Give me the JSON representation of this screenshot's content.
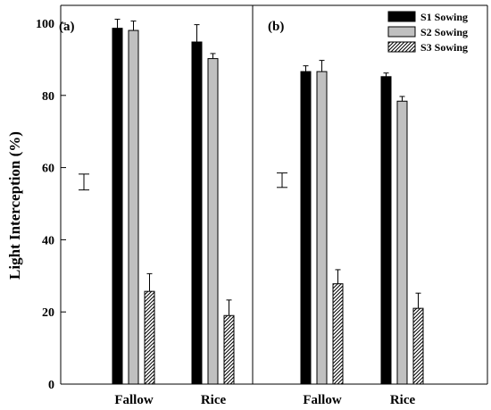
{
  "chart_data": {
    "type": "bar",
    "ylabel": "Light Interception (%)",
    "ylim": [
      0,
      100
    ],
    "yticks": [
      0,
      20,
      40,
      60,
      80,
      100
    ],
    "legend": {
      "placement": "top-right",
      "entries": [
        "S1 Sowing",
        "S2 Sowing",
        "S3 Sowing"
      ]
    },
    "series_styles": [
      {
        "name": "S1 Sowing",
        "fill": "#000000",
        "pattern": "solid"
      },
      {
        "name": "S2 Sowing",
        "fill": "#c0c0c0",
        "pattern": "solid"
      },
      {
        "name": "S3 Sowing",
        "fill": "#ffffff",
        "pattern": "hatch"
      }
    ],
    "panels": [
      {
        "label": "(a)",
        "categories": [
          "Fallow",
          "Rice"
        ],
        "series": [
          {
            "name": "S1 Sowing",
            "values": [
              98.6,
              94.8
            ],
            "errors": [
              2.5,
              4.8
            ]
          },
          {
            "name": "S2 Sowing",
            "values": [
              98.0,
              90.2
            ],
            "errors": [
              2.6,
              1.4
            ]
          },
          {
            "name": "S3 Sowing",
            "values": [
              25.7,
              19.0
            ],
            "errors": [
              4.9,
              4.3
            ]
          }
        ],
        "lsd_bar": {
          "center": 56,
          "half_range": 2.2
        }
      },
      {
        "label": "(b)",
        "categories": [
          "Fallow",
          "Rice"
        ],
        "series": [
          {
            "name": "S1 Sowing",
            "values": [
              86.6,
              85.2
            ],
            "errors": [
              1.6,
              1.0
            ]
          },
          {
            "name": "S2 Sowing",
            "values": [
              86.6,
              78.4
            ],
            "errors": [
              3.1,
              1.3
            ]
          },
          {
            "name": "S3 Sowing",
            "values": [
              27.8,
              21.0
            ],
            "errors": [
              3.9,
              4.2
            ]
          }
        ],
        "lsd_bar": {
          "center": 56.5,
          "half_range": 2.0
        }
      }
    ]
  }
}
